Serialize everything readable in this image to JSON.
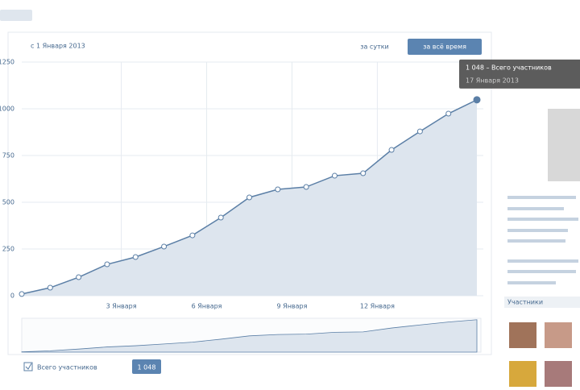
{
  "chart_data": {
    "type": "line",
    "subtitle": "с 1 Января 2013",
    "buttons": [
      "за сутки",
      "за всё время"
    ],
    "x": [
      0,
      1,
      2,
      3,
      4,
      5,
      6,
      7,
      8,
      9,
      10,
      11,
      12,
      13,
      14,
      15,
      16
    ],
    "series": [
      {
        "name": "Всего участников",
        "color": "#5b7fa6",
        "values": [
          9,
          43,
          99,
          168,
          207,
          263,
          323,
          418,
          526,
          569,
          582,
          642,
          655,
          780,
          879,
          974,
          1048
        ]
      }
    ],
    "xlim": [
      0,
      16
    ],
    "xticks": [
      {
        "value": 3.5,
        "label": "3 Января"
      },
      {
        "value": 6.5,
        "label": "6 Января"
      },
      {
        "value": 9.5,
        "label": "9 Января"
      },
      {
        "value": 12.5,
        "label": "12 Января"
      }
    ],
    "ylim": [
      0,
      1250
    ],
    "yticks": [
      0,
      250,
      500,
      750,
      1000,
      1250
    ],
    "grid": true,
    "tooltip": {
      "value_label": "1 048 – Всего участников",
      "date": "17 Января 2013"
    },
    "legend_value": "1 048"
  },
  "sidebar": {
    "members_title": "Участники"
  }
}
